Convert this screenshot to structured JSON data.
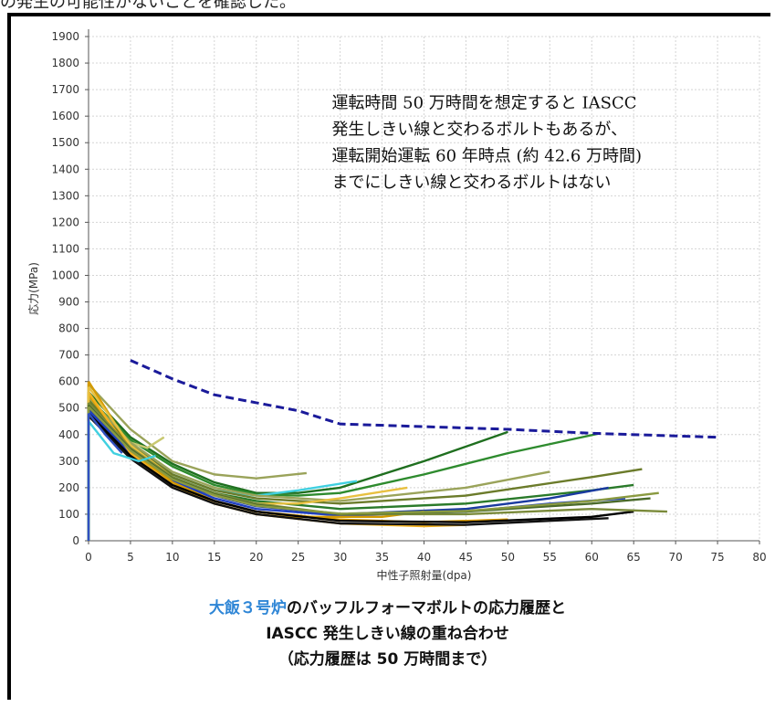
{
  "top_text": "の発生の可能性がないことを確認した。",
  "caption": {
    "line1_highlight": "大飯３号炉",
    "line1_rest": "のバッフルフォーマボルトの応力履歴と",
    "line2": "IASCC 発生しきい線の重ね合わせ",
    "line3": "（応力履歴は 50 万時間まで）"
  },
  "chart_data": {
    "type": "line",
    "xlabel": "中性子照射量(dpa)",
    "ylabel": "応力(MPa)",
    "xlim": [
      0,
      80
    ],
    "ylim": [
      0,
      1900
    ],
    "x_ticks": [
      0,
      5,
      10,
      15,
      20,
      25,
      30,
      35,
      40,
      45,
      50,
      55,
      60,
      65,
      70,
      75,
      80
    ],
    "y_ticks": [
      0,
      100,
      200,
      300,
      400,
      500,
      600,
      700,
      800,
      900,
      1000,
      1100,
      1200,
      1300,
      1400,
      1500,
      1600,
      1700,
      1800,
      1900
    ],
    "grid": true,
    "annotation": [
      "運転時間 50 万時間を想定すると IASCC",
      "発生しきい線と交わるボルトもあるが、",
      "運転開始運転 60 年時点 (約 42.6 万時間)",
      "までにしきい線と交わるボルトはない"
    ],
    "threshold_line": {
      "color": "#1a1a9a",
      "x": [
        5,
        10,
        15,
        20,
        25,
        30,
        40,
        50,
        60,
        70,
        75
      ],
      "y": [
        680,
        610,
        550,
        520,
        490,
        440,
        430,
        420,
        405,
        395,
        390
      ]
    },
    "stress_histories": [
      {
        "color": "#1f6f1f",
        "x": [
          0,
          5,
          10,
          15,
          20,
          25,
          30,
          40,
          50
        ],
        "y": [
          560,
          390,
          290,
          220,
          180,
          180,
          200,
          300,
          410
        ]
      },
      {
        "color": "#2e8b2e",
        "x": [
          0,
          5,
          10,
          15,
          20,
          25,
          30,
          40,
          50,
          61
        ],
        "y": [
          540,
          380,
          280,
          210,
          175,
          170,
          180,
          250,
          330,
          405
        ]
      },
      {
        "color": "#9aa35a",
        "x": [
          0,
          5,
          10,
          15,
          20,
          26
        ],
        "y": [
          590,
          420,
          300,
          250,
          235,
          255
        ]
      },
      {
        "color": "#c8c870",
        "x": [
          0,
          4,
          7,
          9
        ],
        "y": [
          520,
          380,
          350,
          390
        ]
      },
      {
        "color": "#40d0e0",
        "x": [
          0,
          5,
          10,
          15,
          20,
          25,
          32
        ],
        "y": [
          500,
          350,
          250,
          190,
          170,
          190,
          225
        ]
      },
      {
        "color": "#9aa35a",
        "x": [
          0,
          5,
          10,
          15,
          20,
          30,
          45,
          55
        ],
        "y": [
          540,
          370,
          260,
          200,
          170,
          150,
          200,
          260
        ]
      },
      {
        "color": "#6b7b2a",
        "x": [
          0,
          5,
          10,
          15,
          20,
          30,
          45,
          60,
          66
        ],
        "y": [
          530,
          360,
          250,
          190,
          160,
          140,
          170,
          240,
          270
        ]
      },
      {
        "color": "#2a7a2a",
        "x": [
          0,
          5,
          10,
          15,
          20,
          30,
          45,
          60,
          65
        ],
        "y": [
          520,
          350,
          240,
          180,
          150,
          120,
          140,
          190,
          210
        ]
      },
      {
        "color": "#1a3aa0",
        "x": [
          0,
          5,
          10,
          15,
          20,
          30,
          45,
          55,
          62
        ],
        "y": [
          500,
          340,
          230,
          170,
          130,
          100,
          120,
          160,
          200
        ]
      },
      {
        "color": "#2040c0",
        "x": [
          0,
          5,
          10,
          15,
          20,
          30,
          45,
          55,
          64
        ],
        "y": [
          490,
          330,
          225,
          160,
          120,
          95,
          110,
          140,
          160
        ]
      },
      {
        "color": "#e0a000",
        "x": [
          0,
          5,
          10,
          15,
          20,
          30,
          40,
          50
        ],
        "y": [
          550,
          340,
          220,
          150,
          110,
          80,
          70,
          80
        ]
      },
      {
        "color": "#f0b020",
        "x": [
          0,
          5,
          10,
          15,
          20,
          30,
          40,
          45
        ],
        "y": [
          560,
          330,
          210,
          140,
          100,
          65,
          55,
          60
        ]
      },
      {
        "color": "#d49a00",
        "x": [
          0,
          5,
          10,
          15,
          20,
          25,
          35,
          40
        ],
        "y": [
          600,
          350,
          220,
          150,
          110,
          90,
          90,
          110
        ]
      },
      {
        "color": "#e8c040",
        "x": [
          0,
          5,
          10,
          15,
          20,
          25,
          30,
          38
        ],
        "y": [
          580,
          360,
          240,
          170,
          140,
          140,
          160,
          200
        ]
      },
      {
        "color": "#000000",
        "x": [
          0,
          5,
          10,
          15,
          20,
          30,
          45,
          60,
          65
        ],
        "y": [
          480,
          320,
          210,
          150,
          110,
          75,
          70,
          90,
          110
        ]
      },
      {
        "color": "#111111",
        "x": [
          0,
          5,
          10,
          15,
          20,
          30,
          45,
          55,
          62
        ],
        "y": [
          470,
          310,
          200,
          140,
          100,
          65,
          60,
          75,
          85
        ]
      },
      {
        "color": "#7a8a3a",
        "x": [
          0,
          5,
          10,
          15,
          20,
          30,
          45,
          60,
          69
        ],
        "y": [
          520,
          350,
          240,
          180,
          140,
          100,
          100,
          120,
          110
        ]
      },
      {
        "color": "#4a6a2a",
        "x": [
          0,
          5,
          10,
          15,
          20,
          30,
          45,
          60,
          67
        ],
        "y": [
          510,
          345,
          235,
          175,
          135,
          100,
          110,
          140,
          160
        ]
      },
      {
        "color": "#8a9a40",
        "x": [
          0,
          5,
          10,
          15,
          20,
          30,
          45,
          60,
          68
        ],
        "y": [
          505,
          340,
          232,
          172,
          132,
          102,
          112,
          150,
          180
        ]
      },
      {
        "color": "#40d0e0",
        "x": [
          0,
          3,
          6,
          8
        ],
        "y": [
          450,
          330,
          300,
          320
        ]
      },
      {
        "color": "#3050c0",
        "x": [
          0,
          2,
          4
        ],
        "y": [
          480,
          400,
          330
        ]
      }
    ]
  }
}
